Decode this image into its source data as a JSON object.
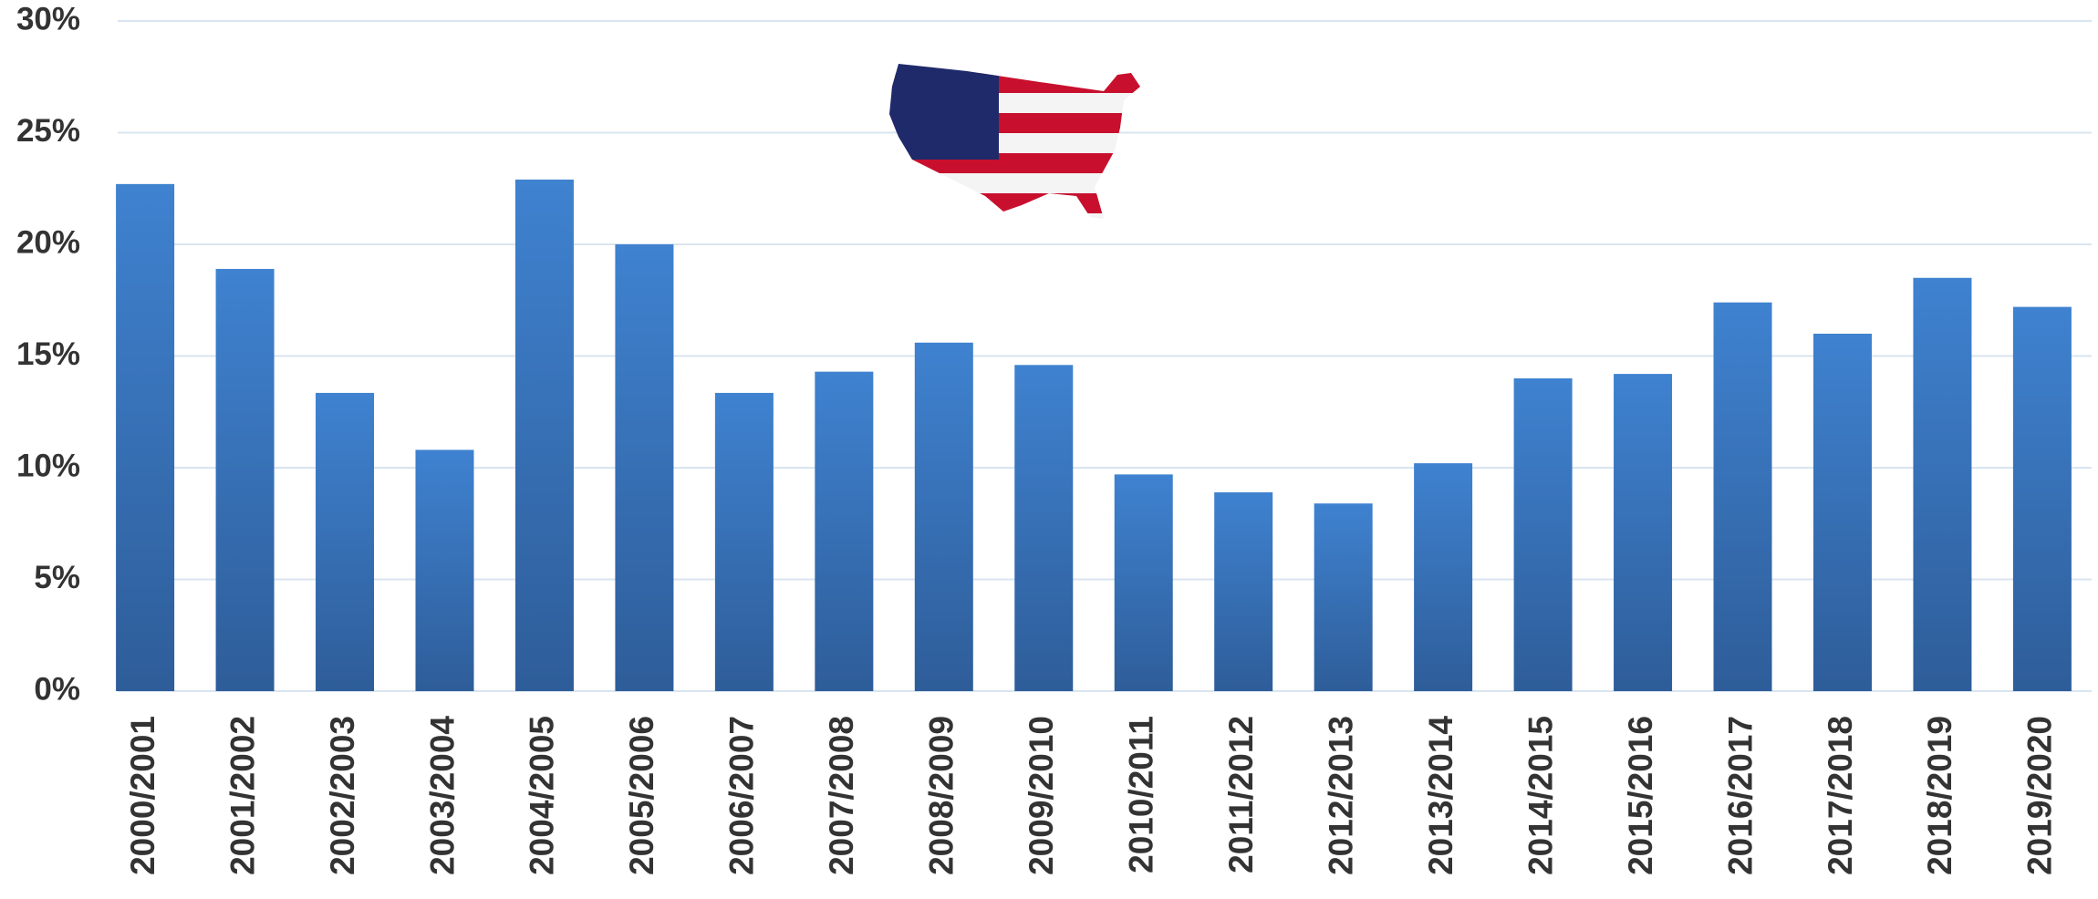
{
  "chart_data": {
    "type": "bar",
    "categories": [
      "2000/2001",
      "2001/2002",
      "2002/2003",
      "2003/2004",
      "2004/2005",
      "2005/2006",
      "2006/2007",
      "2007/2008",
      "2008/2009",
      "2009/2010",
      "2010/2011",
      "2011/2012",
      "2012/2013",
      "2013/2014",
      "2014/2015",
      "2015/2016",
      "2016/2017",
      "2017/2018",
      "2018/2019",
      "2019/2020"
    ],
    "values": [
      22.7,
      18.9,
      13.35,
      10.8,
      22.9,
      20.0,
      13.35,
      14.3,
      15.6,
      14.6,
      9.7,
      8.9,
      8.4,
      10.2,
      14.0,
      14.2,
      17.4,
      16.0,
      18.5,
      17.2
    ],
    "color": "#3a78c4",
    "ylim": [
      0,
      30
    ],
    "yticks": [
      {
        "value": 0,
        "label": "0%"
      },
      {
        "value": 5,
        "label": "5%"
      },
      {
        "value": 10,
        "label": "10%"
      },
      {
        "value": 15,
        "label": "15%"
      },
      {
        "value": 20,
        "label": "20%"
      },
      {
        "value": 25,
        "label": "25%"
      },
      {
        "value": 30,
        "label": "30%"
      }
    ],
    "grid": true
  }
}
